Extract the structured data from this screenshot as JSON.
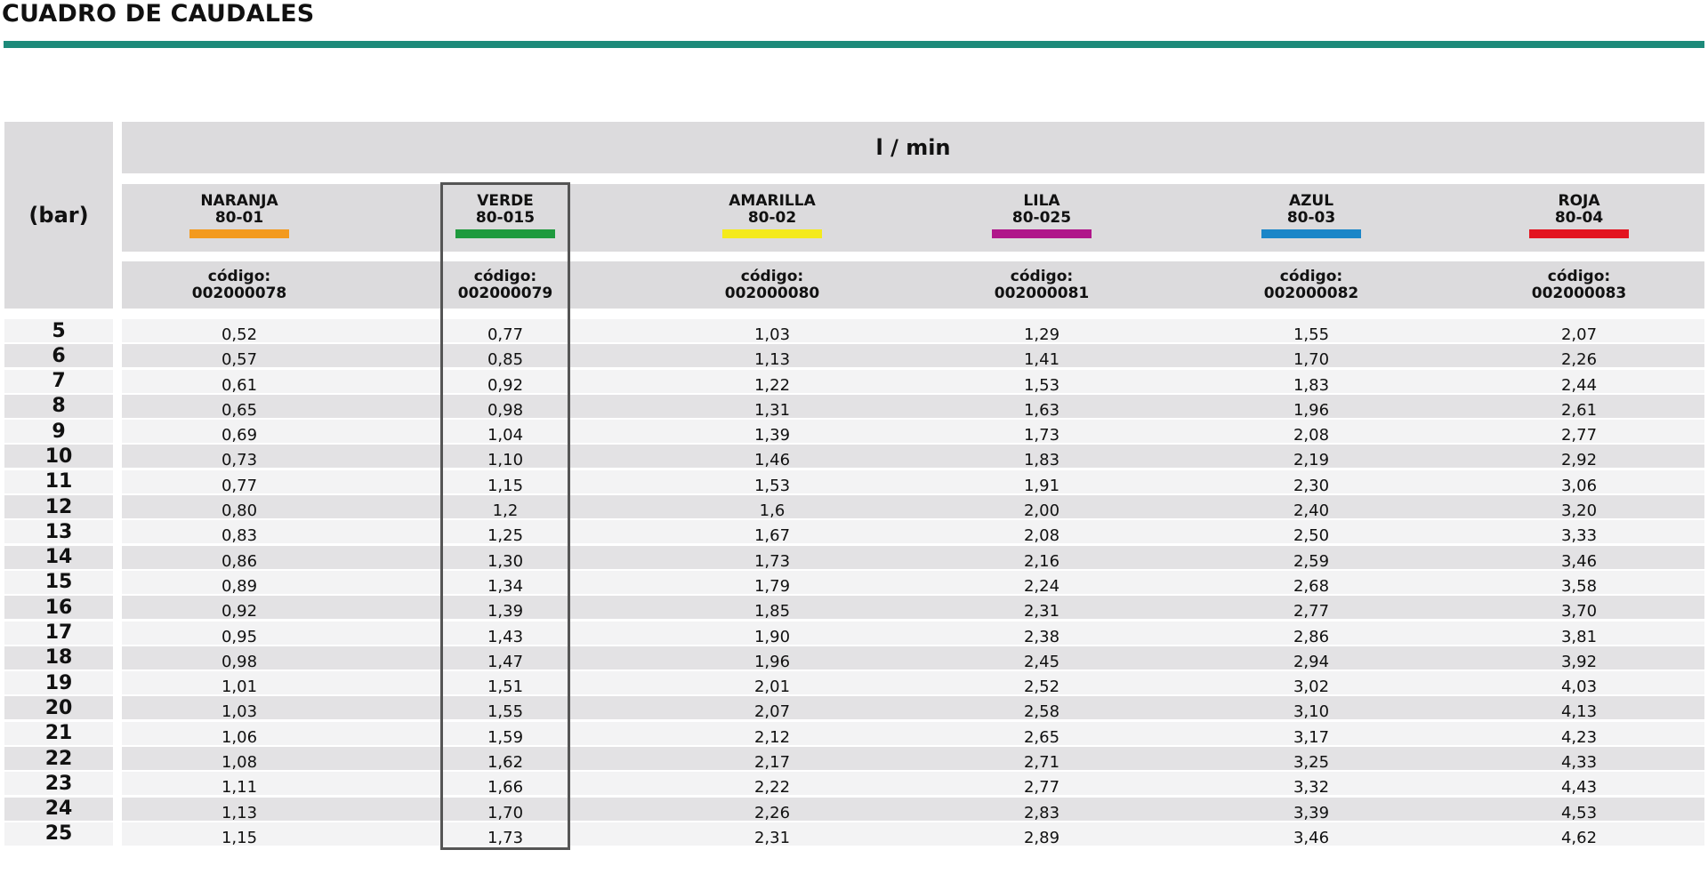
{
  "title": "CUADRO DE CAUDALES",
  "colors": {
    "title_rule": "#1d8a7a",
    "header_bg": "#dcdbdd",
    "row_shade": "#e3e2e4",
    "row_light": "#f3f3f4",
    "highlight_border": "#555555"
  },
  "table": {
    "pressure_header": "(bar)",
    "unit_header": "l / min",
    "nozzles": [
      {
        "name": "NARANJA",
        "model": "80-01",
        "color": "#f39a1e",
        "code_label": "código:",
        "code": "002000078"
      },
      {
        "name": "VERDE",
        "model": "80-015",
        "color": "#1f9a3e",
        "code_label": "código:",
        "code": "002000079"
      },
      {
        "name": "AMARILLA",
        "model": "80-02",
        "color": "#f4ea1c",
        "code_label": "código:",
        "code": "002000080"
      },
      {
        "name": "LILA",
        "model": "80-025",
        "color": "#b0168a",
        "code_label": "código:",
        "code": "002000081"
      },
      {
        "name": "AZUL",
        "model": "80-03",
        "color": "#1b86c8",
        "code_label": "código:",
        "code": "002000082"
      },
      {
        "name": "ROJA",
        "model": "80-04",
        "color": "#e3141f",
        "code_label": "código:",
        "code": "002000083"
      }
    ],
    "highlighted_nozzle": "VERDE",
    "rows": [
      {
        "bar": "5",
        "values": [
          "0,52",
          "0,77",
          "1,03",
          "1,29",
          "1,55",
          "2,07"
        ]
      },
      {
        "bar": "6",
        "values": [
          "0,57",
          "0,85",
          "1,13",
          "1,41",
          "1,70",
          "2,26"
        ]
      },
      {
        "bar": "7",
        "values": [
          "0,61",
          "0,92",
          "1,22",
          "1,53",
          "1,83",
          "2,44"
        ]
      },
      {
        "bar": "8",
        "values": [
          "0,65",
          "0,98",
          "1,31",
          "1,63",
          "1,96",
          "2,61"
        ]
      },
      {
        "bar": "9",
        "values": [
          "0,69",
          "1,04",
          "1,39",
          "1,73",
          "2,08",
          "2,77"
        ]
      },
      {
        "bar": "10",
        "values": [
          "0,73",
          "1,10",
          "1,46",
          "1,83",
          "2,19",
          "2,92"
        ]
      },
      {
        "bar": "11",
        "values": [
          "0,77",
          "1,15",
          "1,53",
          "1,91",
          "2,30",
          "3,06"
        ]
      },
      {
        "bar": "12",
        "values": [
          "0,80",
          "1,2",
          "1,6",
          "2,00",
          "2,40",
          "3,20"
        ]
      },
      {
        "bar": "13",
        "values": [
          "0,83",
          "1,25",
          "1,67",
          "2,08",
          "2,50",
          "3,33"
        ]
      },
      {
        "bar": "14",
        "values": [
          "0,86",
          "1,30",
          "1,73",
          "2,16",
          "2,59",
          "3,46"
        ]
      },
      {
        "bar": "15",
        "values": [
          "0,89",
          "1,34",
          "1,79",
          "2,24",
          "2,68",
          "3,58"
        ]
      },
      {
        "bar": "16",
        "values": [
          "0,92",
          "1,39",
          "1,85",
          "2,31",
          "2,77",
          "3,70"
        ]
      },
      {
        "bar": "17",
        "values": [
          "0,95",
          "1,43",
          "1,90",
          "2,38",
          "2,86",
          "3,81"
        ]
      },
      {
        "bar": "18",
        "values": [
          "0,98",
          "1,47",
          "1,96",
          "2,45",
          "2,94",
          "3,92"
        ]
      },
      {
        "bar": "19",
        "values": [
          "1,01",
          "1,51",
          "2,01",
          "2,52",
          "3,02",
          "4,03"
        ]
      },
      {
        "bar": "20",
        "values": [
          "1,03",
          "1,55",
          "2,07",
          "2,58",
          "3,10",
          "4,13"
        ]
      },
      {
        "bar": "21",
        "values": [
          "1,06",
          "1,59",
          "2,12",
          "2,65",
          "3,17",
          "4,23"
        ]
      },
      {
        "bar": "22",
        "values": [
          "1,08",
          "1,62",
          "2,17",
          "2,71",
          "3,25",
          "4,33"
        ]
      },
      {
        "bar": "23",
        "values": [
          "1,11",
          "1,66",
          "2,22",
          "2,77",
          "3,32",
          "4,43"
        ]
      },
      {
        "bar": "24",
        "values": [
          "1,13",
          "1,70",
          "2,26",
          "2,83",
          "3,39",
          "4,53"
        ]
      },
      {
        "bar": "25",
        "values": [
          "1,15",
          "1,73",
          "2,31",
          "2,89",
          "3,46",
          "4,62"
        ]
      }
    ]
  }
}
